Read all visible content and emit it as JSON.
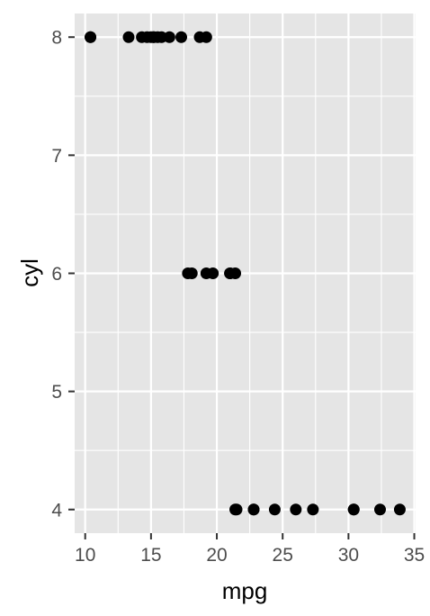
{
  "chart_data": {
    "type": "scatter",
    "title": "",
    "xlabel": "mpg",
    "ylabel": "cyl",
    "xlim": [
      9.2,
      35.1
    ],
    "ylim": [
      3.8,
      8.2
    ],
    "x_ticks": [
      10,
      15,
      20,
      25,
      30,
      35
    ],
    "y_ticks": [
      4,
      5,
      6,
      7,
      8
    ],
    "grid": true,
    "legend": "none",
    "colors": {
      "panel": "#e5e5e5",
      "grid": "#ffffff",
      "point": "#000000",
      "tick_text": "#4d4d4d",
      "tick_mark": "#333333"
    },
    "points": [
      {
        "x": 21.0,
        "y": 6
      },
      {
        "x": 21.0,
        "y": 6
      },
      {
        "x": 22.8,
        "y": 4
      },
      {
        "x": 21.4,
        "y": 6
      },
      {
        "x": 18.7,
        "y": 8
      },
      {
        "x": 18.1,
        "y": 6
      },
      {
        "x": 14.3,
        "y": 8
      },
      {
        "x": 24.4,
        "y": 4
      },
      {
        "x": 22.8,
        "y": 4
      },
      {
        "x": 19.2,
        "y": 6
      },
      {
        "x": 17.8,
        "y": 6
      },
      {
        "x": 16.4,
        "y": 8
      },
      {
        "x": 17.3,
        "y": 8
      },
      {
        "x": 15.2,
        "y": 8
      },
      {
        "x": 10.4,
        "y": 8
      },
      {
        "x": 10.4,
        "y": 8
      },
      {
        "x": 14.7,
        "y": 8
      },
      {
        "x": 32.4,
        "y": 4
      },
      {
        "x": 30.4,
        "y": 4
      },
      {
        "x": 33.9,
        "y": 4
      },
      {
        "x": 21.5,
        "y": 4
      },
      {
        "x": 15.5,
        "y": 8
      },
      {
        "x": 15.2,
        "y": 8
      },
      {
        "x": 13.3,
        "y": 8
      },
      {
        "x": 19.2,
        "y": 8
      },
      {
        "x": 27.3,
        "y": 4
      },
      {
        "x": 26.0,
        "y": 4
      },
      {
        "x": 30.4,
        "y": 4
      },
      {
        "x": 15.8,
        "y": 8
      },
      {
        "x": 19.7,
        "y": 6
      },
      {
        "x": 15.0,
        "y": 8
      },
      {
        "x": 21.4,
        "y": 4
      }
    ]
  }
}
